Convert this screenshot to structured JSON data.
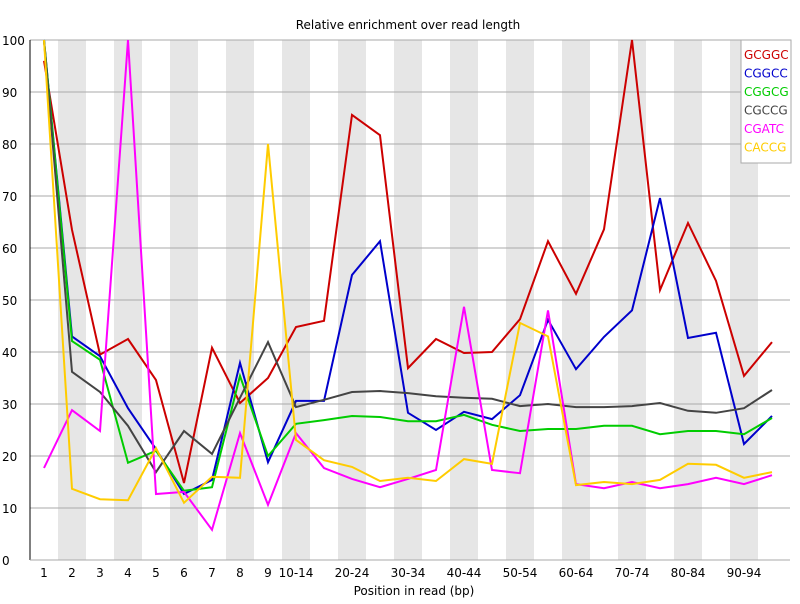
{
  "chart_data": {
    "type": "line",
    "title": "Relative enrichment over read length",
    "xlabel": "Position in read (bp)",
    "ylabel": "",
    "ylim": [
      0,
      100
    ],
    "yticks": [
      0,
      10,
      20,
      30,
      40,
      50,
      60,
      70,
      80,
      90,
      100
    ],
    "grid": true,
    "legend_position": "top-right",
    "categories": [
      "1",
      "2",
      "3",
      "4",
      "5",
      "6",
      "7",
      "8",
      "9",
      "10-14",
      "15-19",
      "20-24",
      "25-29",
      "30-34",
      "35-39",
      "40-44",
      "45-49",
      "50-54",
      "55-59",
      "60-64",
      "65-69",
      "70-74",
      "75-79",
      "80-84",
      "85-89",
      "90-94",
      "95-99"
    ],
    "shown_tick_labels": [
      "1",
      "2",
      "3",
      "4",
      "5",
      "6",
      "7",
      "8",
      "9",
      "10-14",
      "",
      "20-24",
      "",
      "30-34",
      "",
      "40-44",
      "",
      "50-54",
      "",
      "60-64",
      "",
      "70-74",
      "",
      "80-84",
      "",
      "90-94",
      ""
    ],
    "series": [
      {
        "name": "GCGGC",
        "color": "#cc0000",
        "values": [
          96,
          63.5,
          39.5,
          42.5,
          34.6,
          14.8,
          40.8,
          30.2,
          35,
          44.8,
          46,
          85.6,
          81.7,
          36.9,
          42.5,
          39.8,
          40,
          46.3,
          61.3,
          51.2,
          63.6,
          100,
          51.9,
          64.8,
          53.7,
          35.4,
          41.9
        ]
      },
      {
        "name": "CGGCC",
        "color": "#0000cc",
        "values": [
          100,
          43,
          39.2,
          29.2,
          21.3,
          12.7,
          15.4,
          37.9,
          18.8,
          30.6,
          30.6,
          54.8,
          61.3,
          28.3,
          25,
          28.5,
          27.1,
          31.7,
          46.2,
          36.7,
          42.9,
          48,
          69.6,
          42.7,
          43.7,
          22.3,
          27.7
        ]
      },
      {
        "name": "CGGCG",
        "color": "#00cc00",
        "values": [
          100,
          42.1,
          38.5,
          18.7,
          21,
          13.3,
          14,
          35.4,
          20,
          26.2,
          26.9,
          27.7,
          27.5,
          26.7,
          26.7,
          27.9,
          26,
          24.8,
          25.2,
          25.2,
          25.8,
          25.8,
          24.2,
          24.8,
          24.8,
          24.2,
          27.3
        ]
      },
      {
        "name": "CGCCG",
        "color": "#444444",
        "values": [
          100,
          36.2,
          32.3,
          25.8,
          16.9,
          24.8,
          20.4,
          31.2,
          41.9,
          29.4,
          30.8,
          32.3,
          32.5,
          32.1,
          31.5,
          31.2,
          31,
          29.6,
          30,
          29.4,
          29.4,
          29.6,
          30.2,
          28.7,
          28.3,
          29.2,
          32.7
        ]
      },
      {
        "name": "CGATC",
        "color": "#ff00ff",
        "values": [
          17.7,
          28.8,
          24.8,
          100,
          12.7,
          13.1,
          5.8,
          24.4,
          10.6,
          24.4,
          17.7,
          15.6,
          14,
          15.6,
          17.3,
          48.7,
          17.3,
          16.7,
          48,
          14.6,
          13.8,
          15,
          13.8,
          14.6,
          15.8,
          14.6,
          16.3
        ]
      },
      {
        "name": "CACCG",
        "color": "#ffcc00",
        "values": [
          100,
          13.7,
          11.7,
          11.5,
          21.5,
          11,
          16,
          15.8,
          80,
          23.1,
          19.2,
          17.9,
          15.2,
          15.8,
          15.2,
          19.4,
          18.5,
          45.6,
          43,
          14.4,
          15,
          14.6,
          15.4,
          18.5,
          18.3,
          15.8,
          16.9
        ]
      }
    ]
  }
}
